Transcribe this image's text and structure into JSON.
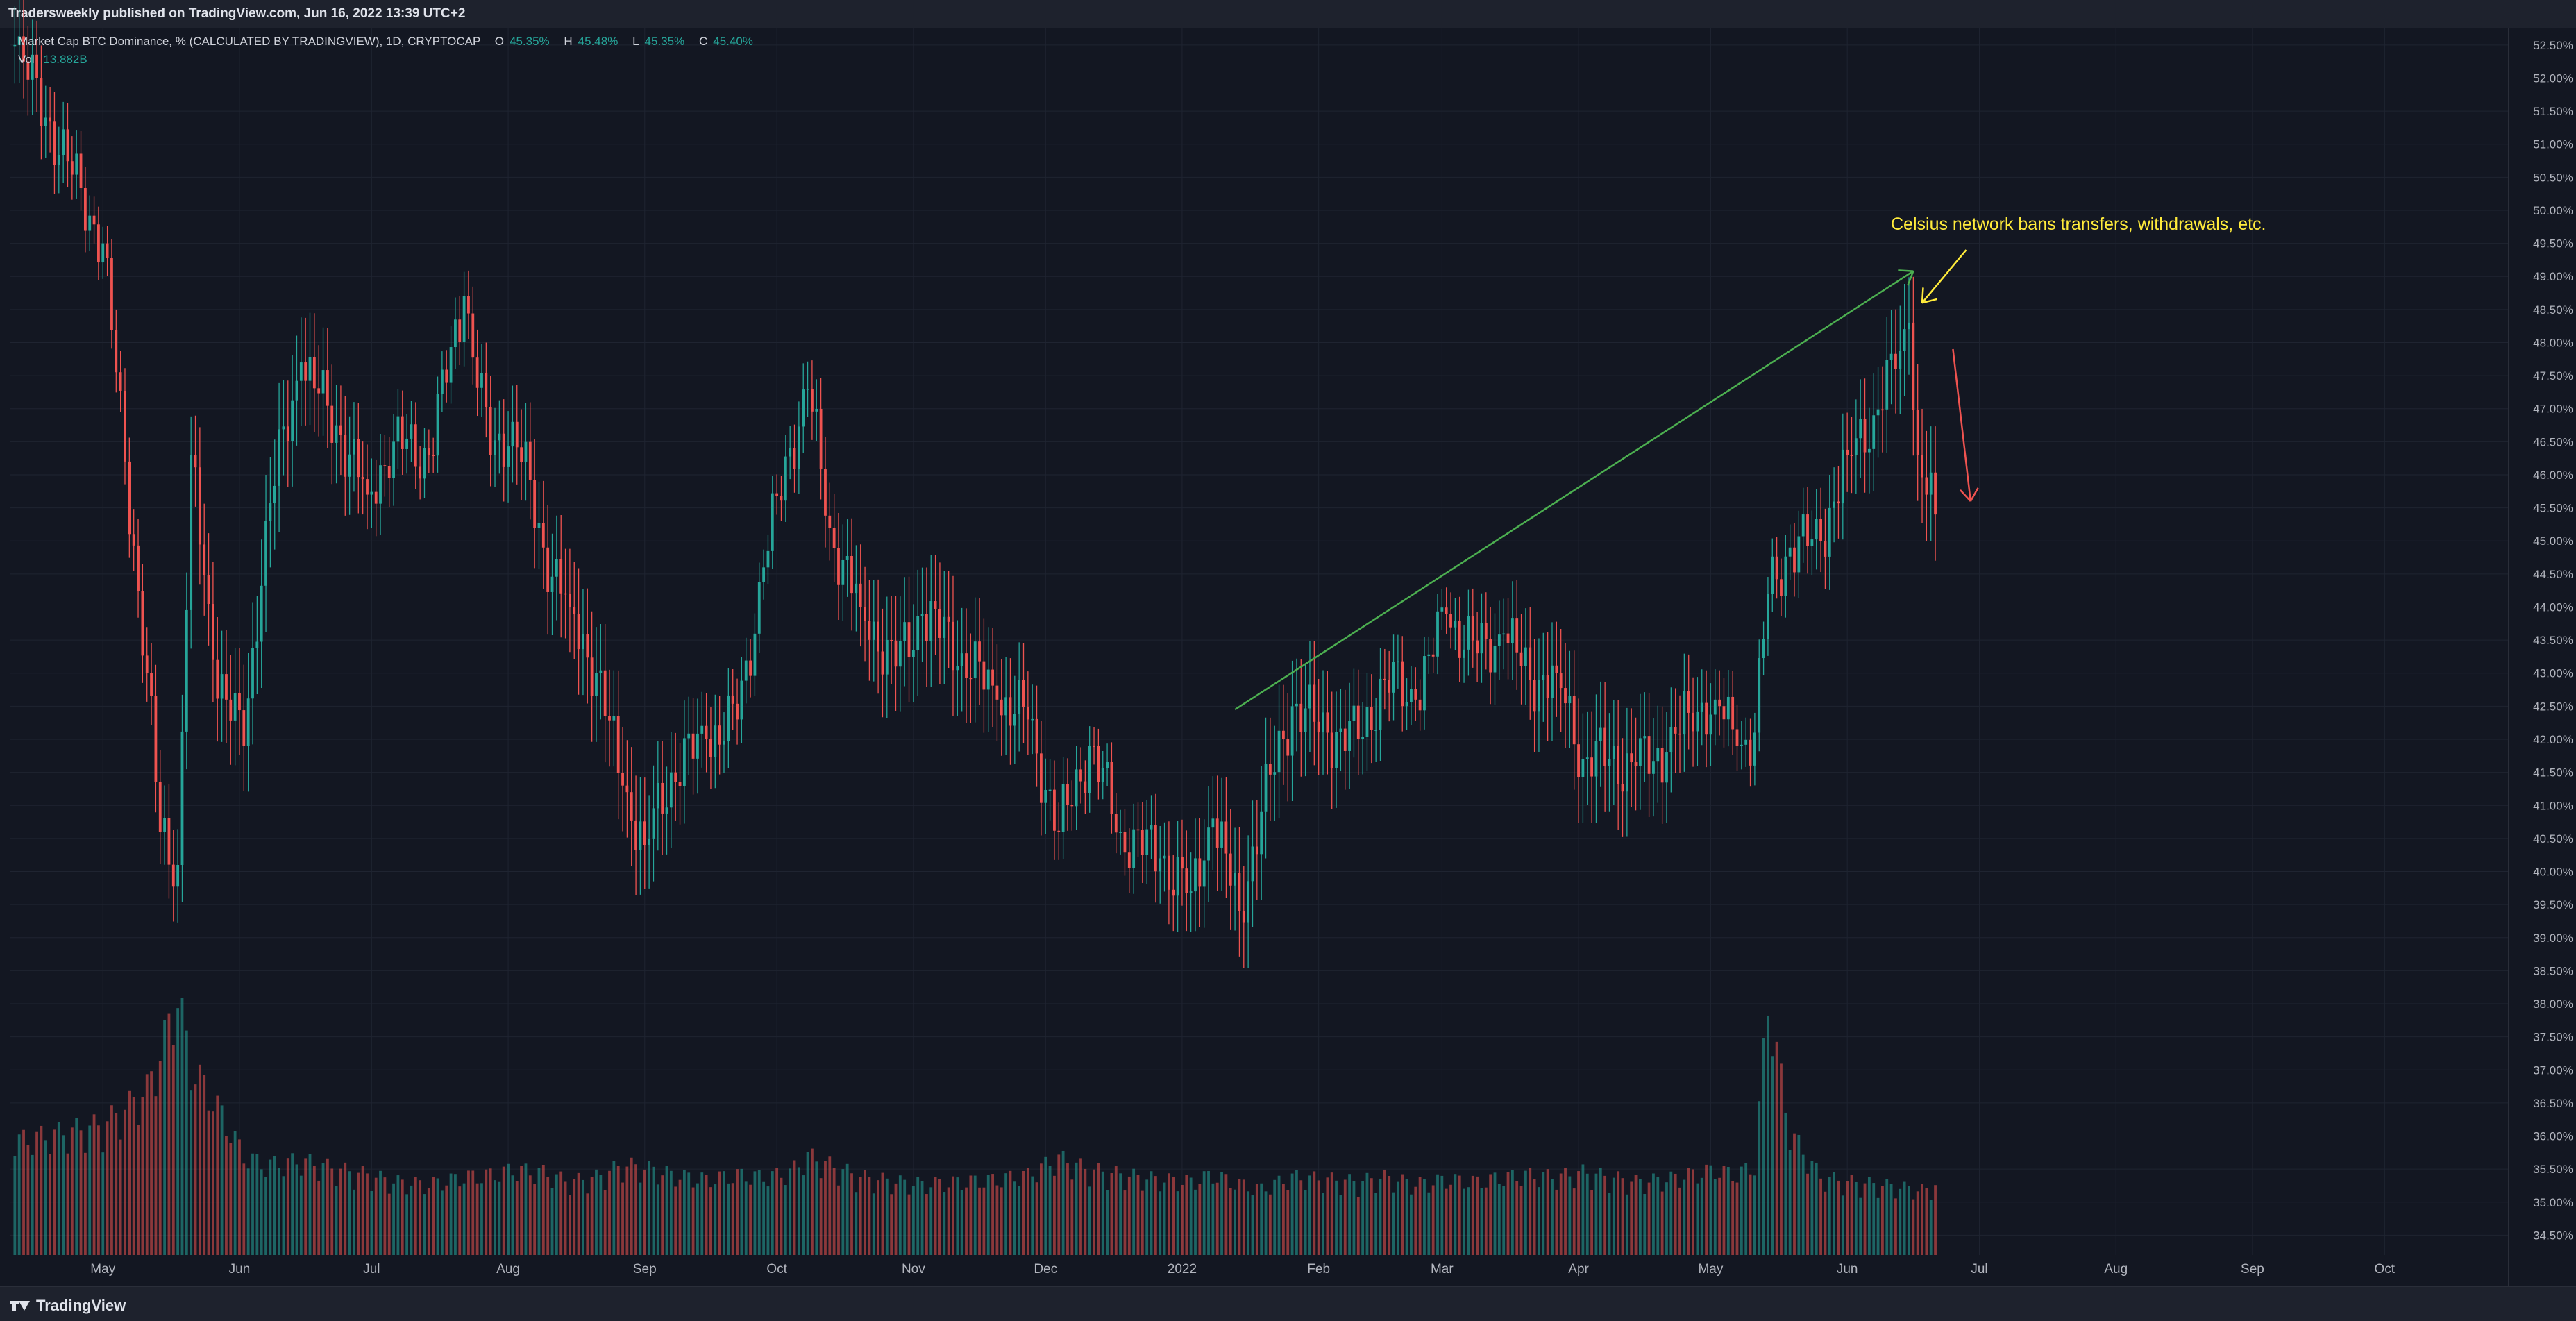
{
  "header": {
    "published_text": "Tradersweekly published on TradingView.com, Jun 16, 2022 13:39 UTC+2"
  },
  "legend": {
    "symbol": "Market Cap BTC Dominance, % (CALCULATED BY TRADINGVIEW), 1D, CRYPTOCAP",
    "o_label": "O",
    "o_value": "45.35%",
    "h_label": "H",
    "h_value": "45.48%",
    "l_label": "L",
    "l_value": "45.35%",
    "c_label": "C",
    "c_value": "45.40%",
    "vol_label": "Vol",
    "vol_value": "13.882B"
  },
  "annotation": {
    "text": "Celsius network bans transfers, withdrawals, etc."
  },
  "footer": {
    "brand": "TradingView"
  },
  "colors": {
    "up": "#26a69a",
    "down": "#ef5350",
    "background": "#131722",
    "grid": "#1f2431",
    "trendline": "#4caf50",
    "arrow_yellow": "#ffeb3b",
    "arrow_red": "#ef5350"
  },
  "chart_data": {
    "type": "candlestick",
    "title": "Market Cap BTC Dominance, % (CALCULATED BY TRADINGVIEW), 1D, CRYPTOCAP",
    "interval": "1D",
    "x_axis": {
      "labels": [
        "May",
        "Jun",
        "Jul",
        "Aug",
        "Sep",
        "Oct",
        "Nov",
        "Dec",
        "2022",
        "Feb",
        "Mar",
        "Apr",
        "May",
        "Jun",
        "Jul",
        "Aug",
        "Sep",
        "Oct"
      ],
      "label_days": [
        0,
        31,
        61,
        92,
        123,
        153,
        184,
        214,
        245,
        276,
        304,
        335,
        365,
        396,
        426,
        457,
        488,
        518
      ],
      "range_days": [
        -21,
        546
      ]
    },
    "y_axis": {
      "ticks": [
        "52.50%",
        "52.00%",
        "51.50%",
        "51.00%",
        "50.50%",
        "50.00%",
        "49.50%",
        "49.00%",
        "48.50%",
        "48.00%",
        "47.50%",
        "47.00%",
        "46.50%",
        "46.00%",
        "45.50%",
        "45.00%",
        "44.50%",
        "44.00%",
        "43.50%",
        "43.00%",
        "42.50%",
        "42.00%",
        "41.50%",
        "41.00%",
        "40.50%",
        "40.00%",
        "39.50%",
        "39.00%",
        "38.50%",
        "38.00%",
        "37.50%",
        "37.00%",
        "36.50%",
        "36.00%",
        "35.50%",
        "35.00%",
        "34.50%"
      ],
      "range": [
        34.2,
        52.75
      ],
      "price_range": [
        39.2,
        52.75
      ]
    },
    "volume_range_billion": [
      0,
      120
    ],
    "series": [
      {
        "name": "BTC Dominance",
        "points": [
          {
            "day": -20,
            "close": 52.5,
            "vol": 48
          },
          {
            "day": 0,
            "close": 49.5,
            "vol": 55
          },
          {
            "day": 5,
            "close": 46.2,
            "vol": 62
          },
          {
            "day": 10,
            "close": 43.0,
            "vol": 70
          },
          {
            "day": 13,
            "close": 40.6,
            "vol": 85
          },
          {
            "day": 17,
            "close": 40.1,
            "vol": 110
          },
          {
            "day": 20,
            "close": 46.3,
            "vol": 80
          },
          {
            "day": 25,
            "close": 43.2,
            "vol": 66
          },
          {
            "day": 32,
            "close": 41.9,
            "vol": 42
          },
          {
            "day": 37,
            "close": 45.3,
            "vol": 38
          },
          {
            "day": 45,
            "close": 47.7,
            "vol": 40
          },
          {
            "day": 54,
            "close": 46.6,
            "vol": 36
          },
          {
            "day": 60,
            "close": 45.7,
            "vol": 34
          },
          {
            "day": 66,
            "close": 46.5,
            "vol": 31
          },
          {
            "day": 74,
            "close": 46.3,
            "vol": 30
          },
          {
            "day": 82,
            "close": 48.7,
            "vol": 33
          },
          {
            "day": 88,
            "close": 46.3,
            "vol": 34
          },
          {
            "day": 93,
            "close": 46.8,
            "vol": 36
          },
          {
            "day": 100,
            "close": 44.9,
            "vol": 35
          },
          {
            "day": 106,
            "close": 44.0,
            "vol": 31
          },
          {
            "day": 112,
            "close": 43.0,
            "vol": 33
          },
          {
            "day": 118,
            "close": 41.3,
            "vol": 38
          },
          {
            "day": 123,
            "close": 40.4,
            "vol": 37
          },
          {
            "day": 129,
            "close": 41.5,
            "vol": 34
          },
          {
            "day": 137,
            "close": 42.0,
            "vol": 32
          },
          {
            "day": 144,
            "close": 42.3,
            "vol": 34
          },
          {
            "day": 150,
            "close": 44.6,
            "vol": 33
          },
          {
            "day": 156,
            "close": 46.4,
            "vol": 35
          },
          {
            "day": 160,
            "close": 47.3,
            "vol": 42
          },
          {
            "day": 165,
            "close": 45.2,
            "vol": 38
          },
          {
            "day": 172,
            "close": 44.0,
            "vol": 33
          },
          {
            "day": 180,
            "close": 43.1,
            "vol": 31
          },
          {
            "day": 186,
            "close": 43.9,
            "vol": 30
          },
          {
            "day": 195,
            "close": 43.3,
            "vol": 31
          },
          {
            "day": 203,
            "close": 42.6,
            "vol": 32
          },
          {
            "day": 210,
            "close": 42.3,
            "vol": 34
          },
          {
            "day": 217,
            "close": 40.6,
            "vol": 41
          },
          {
            "day": 224,
            "close": 41.9,
            "vol": 36
          },
          {
            "day": 231,
            "close": 40.6,
            "vol": 34
          },
          {
            "day": 240,
            "close": 40.2,
            "vol": 32
          },
          {
            "day": 247,
            "close": 39.7,
            "vol": 31
          },
          {
            "day": 252,
            "close": 40.8,
            "vol": 34
          },
          {
            "day": 258,
            "close": 39.4,
            "vol": 30
          },
          {
            "day": 263,
            "close": 40.9,
            "vol": 28
          },
          {
            "day": 270,
            "close": 42.5,
            "vol": 33
          },
          {
            "day": 278,
            "close": 42.1,
            "vol": 32
          },
          {
            "day": 285,
            "close": 42.0,
            "vol": 31
          },
          {
            "day": 291,
            "close": 42.9,
            "vol": 33
          },
          {
            "day": 298,
            "close": 42.6,
            "vol": 30
          },
          {
            "day": 305,
            "close": 43.9,
            "vol": 32
          },
          {
            "day": 312,
            "close": 43.3,
            "vol": 31
          },
          {
            "day": 318,
            "close": 43.6,
            "vol": 33
          },
          {
            "day": 324,
            "close": 42.9,
            "vol": 34
          },
          {
            "day": 330,
            "close": 43.0,
            "vol": 33
          },
          {
            "day": 336,
            "close": 41.7,
            "vol": 35
          },
          {
            "day": 342,
            "close": 41.7,
            "vol": 33
          },
          {
            "day": 348,
            "close": 41.6,
            "vol": 31
          },
          {
            "day": 355,
            "close": 41.8,
            "vol": 32
          },
          {
            "day": 360,
            "close": 42.4,
            "vol": 34
          },
          {
            "day": 366,
            "close": 42.6,
            "vol": 36
          },
          {
            "day": 371,
            "close": 41.9,
            "vol": 34
          },
          {
            "day": 375,
            "close": 42.1,
            "vol": 38
          },
          {
            "day": 378,
            "close": 44.2,
            "vol": 108
          },
          {
            "day": 383,
            "close": 44.9,
            "vol": 52
          },
          {
            "day": 390,
            "close": 45.0,
            "vol": 33
          },
          {
            "day": 396,
            "close": 46.3,
            "vol": 31
          },
          {
            "day": 402,
            "close": 46.9,
            "vol": 30
          },
          {
            "day": 407,
            "close": 47.6,
            "vol": 29
          },
          {
            "day": 410,
            "close": 48.3,
            "vol": 28
          },
          {
            "day": 412,
            "close": 46.3,
            "vol": 28
          },
          {
            "day": 414,
            "close": 45.7,
            "vol": 27
          },
          {
            "day": 416,
            "close": 45.4,
            "vol": 27
          }
        ]
      }
    ],
    "drawings": {
      "trendline": {
        "from": {
          "day": 257,
          "value": 42.45
        },
        "to": {
          "day": 411,
          "value": 49.08
        }
      },
      "yellow_arrow": {
        "from": {
          "day": 423,
          "value": 49.4
        },
        "to": {
          "day": 413,
          "value": 48.6
        }
      },
      "red_arrow": {
        "from": {
          "day": 420,
          "value": 47.9
        },
        "to": {
          "day": 424,
          "value": 45.6
        }
      }
    }
  }
}
